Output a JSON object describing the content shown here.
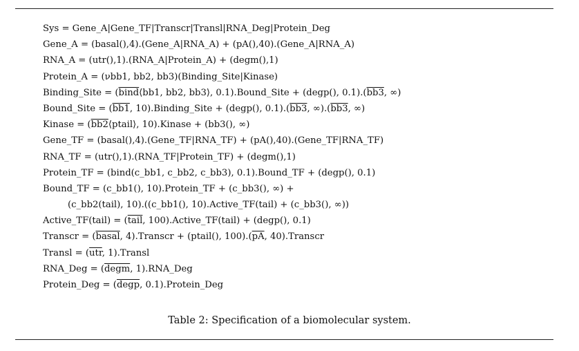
{
  "lines": [
    {
      "indent": false,
      "segments": [
        {
          "text": "Sys = Gene_A|Gene_TF|Transcr|Transl|RNA_Deg|Protein_Deg",
          "overline": false
        }
      ]
    },
    {
      "indent": false,
      "segments": [
        {
          "text": "Gene_A = (basal(),4).(Gene_A|RNA_A)  +  (pA(),40).(Gene_A|RNA_A)",
          "overline": false
        }
      ]
    },
    {
      "indent": false,
      "segments": [
        {
          "text": "RNA_A = (utr(),1).(RNA_A|Protein_A)  +  (degm(),1)",
          "overline": false
        }
      ]
    },
    {
      "indent": false,
      "segments": [
        {
          "text": "Protein_A = (νbb1, bb2, bb3)(Binding_Site|Kinase)",
          "overline": false
        }
      ]
    },
    {
      "indent": false,
      "segments": [
        {
          "text": "Binding_Site = (",
          "overline": false
        },
        {
          "text": "bind",
          "overline": true
        },
        {
          "text": "⟨bb1, bb2, bb3⟩, 0.1).Bound_Site  +  (degp(), 0.1).(",
          "overline": false
        },
        {
          "text": "bb3",
          "overline": true
        },
        {
          "text": ", ∞)",
          "overline": false
        }
      ]
    },
    {
      "indent": false,
      "segments": [
        {
          "text": "Bound_Site = (",
          "overline": false
        },
        {
          "text": "bb1",
          "overline": true
        },
        {
          "text": ", 10).Binding_Site  +  (degp(), 0.1).(",
          "overline": false
        },
        {
          "text": "bb3",
          "overline": true
        },
        {
          "text": ", ∞).(",
          "overline": false
        },
        {
          "text": "bb3",
          "overline": true
        },
        {
          "text": ", ∞)",
          "overline": false
        }
      ]
    },
    {
      "indent": false,
      "segments": [
        {
          "text": "Kinase = (",
          "overline": false
        },
        {
          "text": "bb2",
          "overline": true
        },
        {
          "text": "⟨ptail⟩, 10).Kinase  +  (bb3(), ∞)",
          "overline": false
        }
      ]
    },
    {
      "indent": false,
      "segments": [
        {
          "text": "Gene_TF = (basal(),4).(Gene_TF|RNA_TF)  +  (pA(),40).(Gene_TF|RNA_TF)",
          "overline": false
        }
      ]
    },
    {
      "indent": false,
      "segments": [
        {
          "text": "RNA_TF = (utr(),1).(RNA_TF|Protein_TF)  +  (degm(),1)",
          "overline": false
        }
      ]
    },
    {
      "indent": false,
      "segments": [
        {
          "text": "Protein_TF = (bind(c_bb1, c_bb2, c_bb3), 0.1).Bound_TF  +  (degp(), 0.1)",
          "overline": false
        }
      ]
    },
    {
      "indent": false,
      "segments": [
        {
          "text": "Bound_TF = (c_bb1(), 10).Protein_TF  +  (c_bb3(), ∞)  +",
          "overline": false
        }
      ]
    },
    {
      "indent": true,
      "segments": [
        {
          "text": "(c_bb2(tail), 10).((c_bb1(), 10).Active_TF(tail)  +  (c_bb3(), ∞))",
          "overline": false
        }
      ]
    },
    {
      "indent": false,
      "segments": [
        {
          "text": "Active_TF(tail) = (",
          "overline": false
        },
        {
          "text": "tail",
          "overline": true
        },
        {
          "text": ", 100).Active_TF(tail)  +  (degp(), 0.1)",
          "overline": false
        }
      ]
    },
    {
      "indent": false,
      "segments": [
        {
          "text": "Transcr = (",
          "overline": false
        },
        {
          "text": "basal",
          "overline": true
        },
        {
          "text": ", 4).Transcr  +  (ptail(), 100).(",
          "overline": false
        },
        {
          "text": "pA",
          "overline": true
        },
        {
          "text": ", 40).Transcr",
          "overline": false
        }
      ]
    },
    {
      "indent": false,
      "segments": [
        {
          "text": "Transl = (",
          "overline": false
        },
        {
          "text": "utr",
          "overline": true
        },
        {
          "text": ", 1).Transl",
          "overline": false
        }
      ]
    },
    {
      "indent": false,
      "segments": [
        {
          "text": "RNA_Deg = (",
          "overline": false
        },
        {
          "text": "degm",
          "overline": true
        },
        {
          "text": ", 1).RNA_Deg",
          "overline": false
        }
      ]
    },
    {
      "indent": false,
      "segments": [
        {
          "text": "Protein_Deg = (",
          "overline": false
        },
        {
          "text": "degp",
          "overline": true
        },
        {
          "text": ", 0.1).Protein_Deg",
          "overline": false
        }
      ]
    }
  ],
  "caption": "Table 2: Specification of a biomolecular system."
}
